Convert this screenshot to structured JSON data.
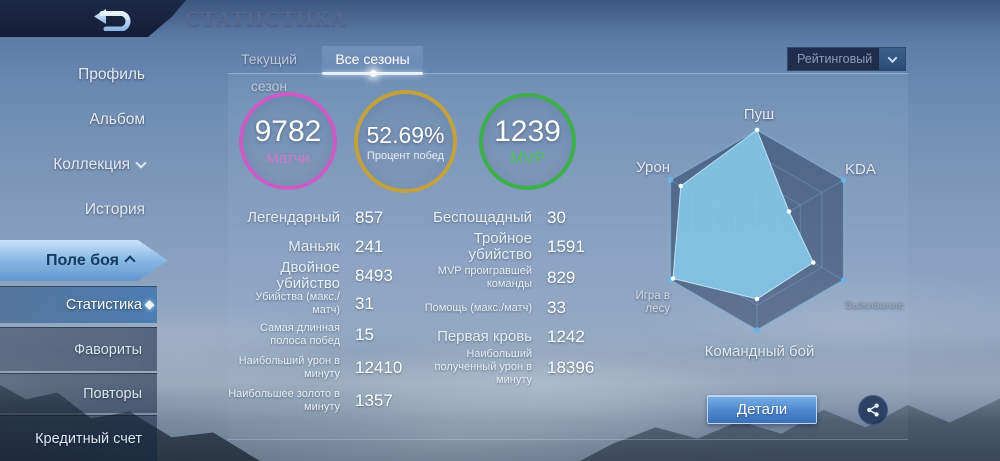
{
  "header": {
    "title": "СТАТИСТИКА"
  },
  "sidebar": {
    "items": [
      {
        "label": "Профиль"
      },
      {
        "label": "Альбом"
      },
      {
        "label": "Коллекция"
      },
      {
        "label": "История"
      },
      {
        "label": "Поле боя"
      },
      {
        "label": "Статистика"
      },
      {
        "label": "Фавориты"
      },
      {
        "label": "Повторы"
      },
      {
        "label": "Кредитный счет"
      }
    ]
  },
  "tabs": {
    "current_season": "Текущий сезон",
    "all_seasons": "Все сезоны"
  },
  "filter": {
    "selected": "Рейтинговый"
  },
  "summary": {
    "matches": {
      "value": "9782",
      "label": "Матчи",
      "ring_color": "#cb5cc6"
    },
    "win_rate": {
      "value": "52.69%",
      "label": "Процент побед",
      "ring_color": "#c2a23d"
    },
    "mvp": {
      "value": "1239",
      "label": "MVP",
      "ring_color": "#3db04c"
    }
  },
  "stats": {
    "left": [
      {
        "label": "Легендарный",
        "value": "857",
        "small": false,
        "lines": 1
      },
      {
        "label": "Маньяк",
        "value": "241",
        "small": false,
        "lines": 1
      },
      {
        "label": "Двойное убийство",
        "value": "8493",
        "small": false,
        "lines": 1
      },
      {
        "label": "Убийства (макс./матч)",
        "value": "31",
        "small": true,
        "lines": 1
      },
      {
        "label": "Самая длинная полоса побед",
        "value": "15",
        "small": true,
        "lines": 2
      },
      {
        "label": "Наибольший урон в минуту",
        "value": "12410",
        "small": true,
        "lines": 2
      },
      {
        "label": "Наибольшее золото в минуту",
        "value": "1357",
        "small": true,
        "lines": 2
      }
    ],
    "right": [
      {
        "label": "Беспощадный",
        "value": "30",
        "small": false,
        "lines": 1
      },
      {
        "label": "Тройное убийство",
        "value": "1591",
        "small": false,
        "lines": 1
      },
      {
        "label": "MVP проигравшей команды",
        "value": "829",
        "small": true,
        "lines": 2
      },
      {
        "label": "Помощь (макс./матч)",
        "value": "33",
        "small": true,
        "lines": 1
      },
      {
        "label": "Первая кровь",
        "value": "1242",
        "small": false,
        "lines": 1
      },
      {
        "label": "Наибольший полученный урон в минуту",
        "value": "18396",
        "small": true,
        "lines": 2
      }
    ]
  },
  "chart_data": {
    "type": "radar",
    "title": "",
    "categories": [
      "Пуш",
      "KDA",
      "Выживание",
      "Командный бой",
      "Игра в лесу",
      "Урон"
    ],
    "values_percent": [
      100,
      37,
      65,
      69,
      97,
      88
    ],
    "max": 100,
    "grid_levels": [
      1,
      0.75,
      0.5,
      0.25
    ],
    "fill_color": "rgba(138,206,238,0.85)",
    "grid_fill": "rgba(24,44,78,0.45)",
    "grid_stroke": "rgba(130,180,230,0.35)",
    "legend_position": "none"
  },
  "actions": {
    "details_label": "Детали"
  }
}
